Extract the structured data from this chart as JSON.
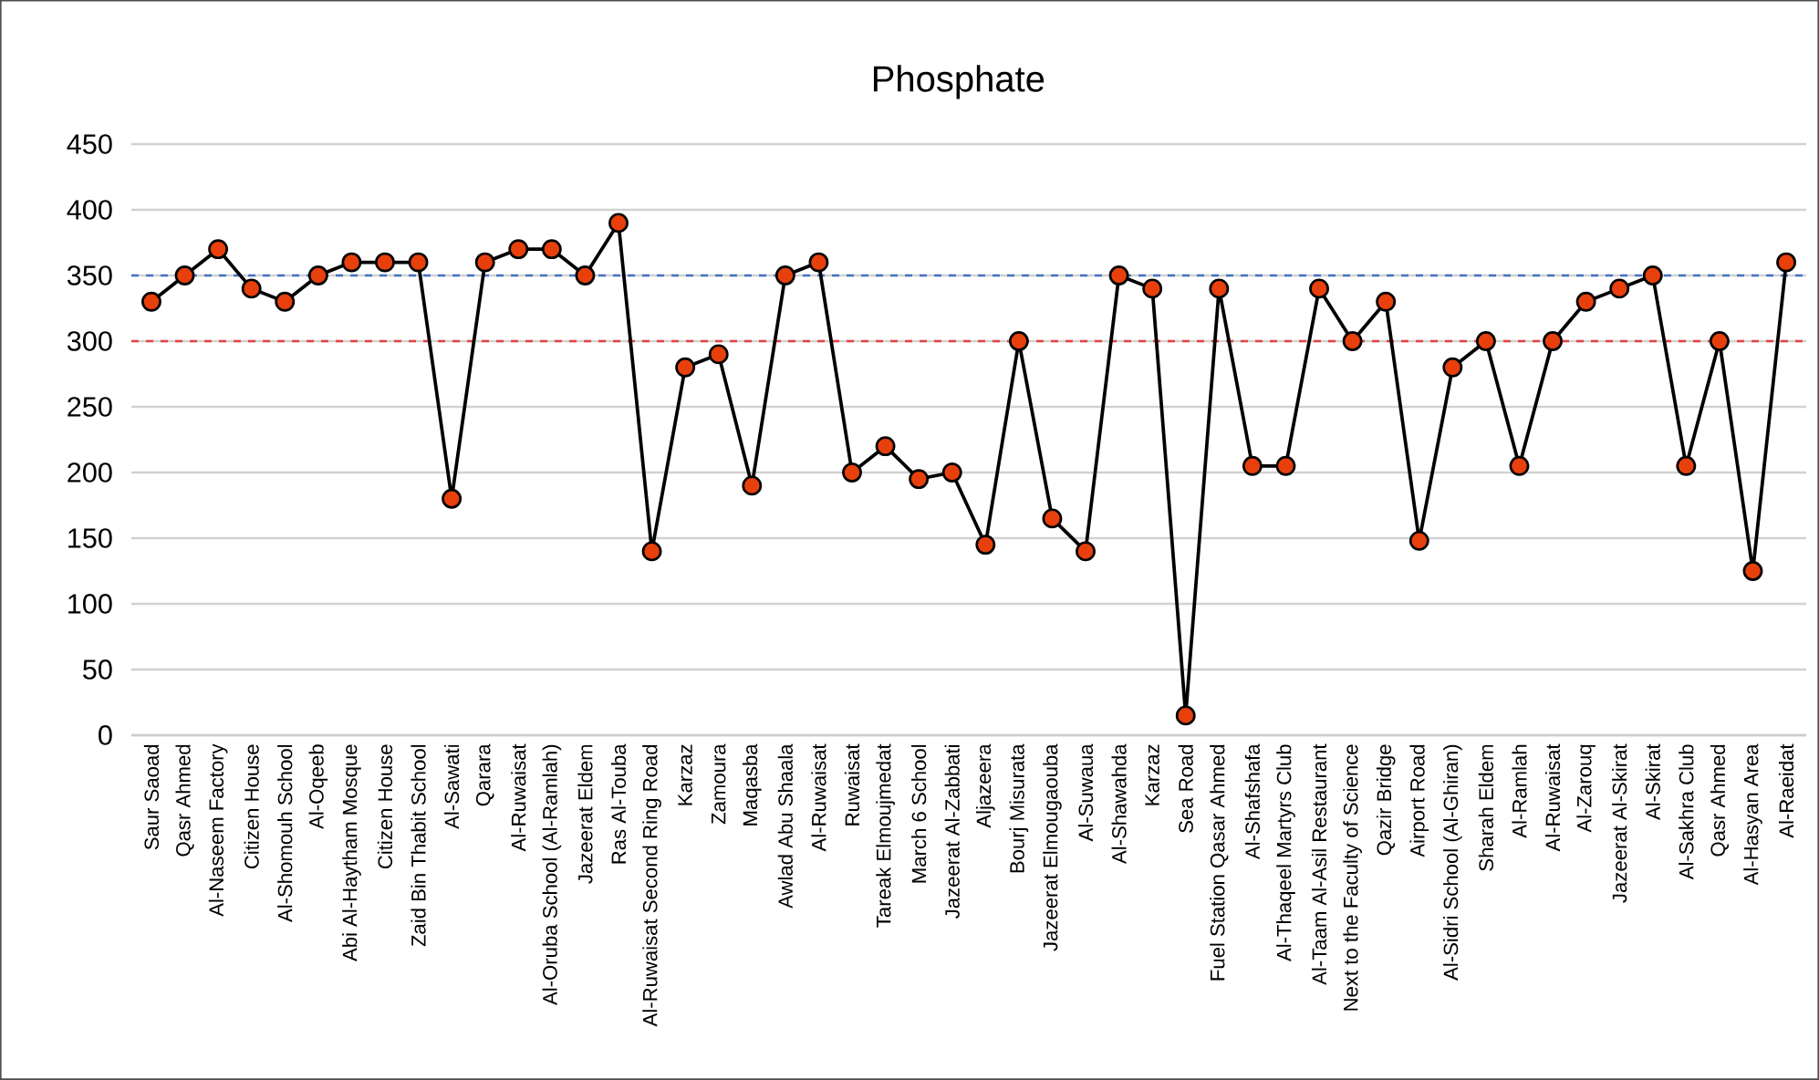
{
  "chart_data": {
    "type": "line",
    "title": "Phosphate",
    "categories": [
      "Saur Saoad",
      "Qasr Ahmed",
      "Al-Naseem Factory",
      "Citizen House",
      "Al-Shomouh School",
      "Al-Oqeeb",
      "Abi Al-Haytham Mosque",
      "Citizen House",
      "Zaid Bin Thabit School",
      "Al-Sawati",
      "Qarara",
      "Al-Ruwaisat",
      "Al-Oruba School (Al-Ramlah)",
      "Jazeerat Eldem",
      "Ras Al-Touba",
      "Al-Ruwaisat Second Ring Road",
      "Karzaz",
      "Zamoura",
      "Maqasba",
      "Awlad Abu Shaala",
      "Al-Ruwaisat",
      "Ruwaisat",
      "Tareak Elmoujmedat",
      "March 6 School",
      "Jazeerat Al-Zabbati",
      "Aljazeera",
      "Bourj Misurata",
      "Jazeerat Elmougaouba",
      "Al-Suwaua",
      "Al-Shawahda",
      "Karzaz",
      "Sea Road",
      "Fuel Station  Qasar Ahmed",
      "Al-Shafshafa",
      "Al-Thaqeel Martyrs Club",
      "Al-Taam Al-Asil Restaurant",
      "Next to the Faculty of Science",
      "Qazir Bridge",
      "Airport Road",
      "Al-Sidri School (Al-Ghiran)",
      "Sharah Eldem",
      "Al-Ramlah",
      "Al-Ruwaisat",
      "Al-Zarouq",
      "Jazeerat Al-Skirat",
      "Al-Skirat",
      "Al-Sakhra Club",
      "Qasr Ahmed",
      "Al-Hasyan Area",
      "Al-Raeidat"
    ],
    "series": [
      {
        "color": "#e8400c",
        "values": [
          330,
          350,
          370,
          340,
          330,
          350,
          360,
          360,
          360,
          180,
          360,
          370,
          370,
          350,
          390,
          140,
          280,
          290,
          190,
          350,
          360,
          200,
          220,
          195,
          200,
          145,
          300,
          165,
          140,
          350,
          340,
          15,
          340,
          205,
          205,
          340,
          300,
          330,
          148,
          280,
          300,
          205,
          300,
          330,
          340,
          350,
          205,
          300,
          125,
          360
        ]
      }
    ],
    "ylim": [
      0,
      450
    ],
    "yticks": [
      0,
      50,
      100,
      150,
      200,
      250,
      300,
      350,
      400,
      450
    ],
    "grid": "y",
    "marker": "circle",
    "line_style": "solid",
    "ref_lines": [
      {
        "axis": "y",
        "value": 350,
        "color": "#4472c4",
        "line_style": "dashed"
      },
      {
        "axis": "y",
        "value": 300,
        "color": "#e84040",
        "line_style": "dashed"
      }
    ]
  }
}
